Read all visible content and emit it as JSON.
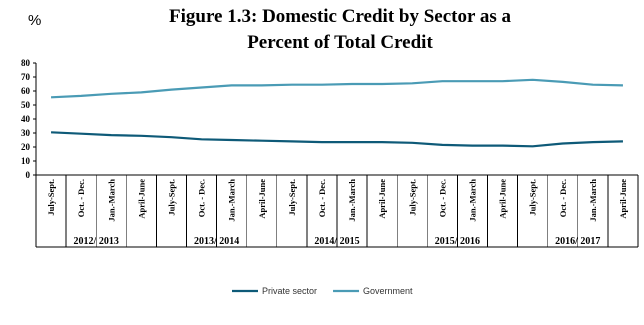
{
  "chart_data": {
    "type": "line",
    "title_lines": [
      "Figure 1.3: Domestic Credit by Sector as a",
      "Percent of Total Credit"
    ],
    "unit_label": "%",
    "ylim": [
      0,
      80
    ],
    "yticks": [
      0,
      10,
      20,
      30,
      40,
      50,
      60,
      70,
      80
    ],
    "categories": [
      "July-Sept.",
      "Oct. - Dec.",
      "Jan.-March",
      "April-June",
      "July-Sept.",
      "Oct. - Dec.",
      "Jan.-March",
      "April-June",
      "July-Sept.",
      "Oct. - Dec.",
      "Jan.-March",
      "April-June",
      "July-Sept.",
      "Oct. - Dec.",
      "Jan.-March",
      "April-June",
      "July-Sept.",
      "Oct. - Dec.",
      "Jan.-March",
      "April-June"
    ],
    "groups": [
      "2012/ 2013",
      "2013/ 2014",
      "2014/ 2015",
      "2015/ 2016",
      "2016/ 2017"
    ],
    "series": [
      {
        "name": "Private sector",
        "color": "#0e5a78",
        "values": [
          30.5,
          29.5,
          28.5,
          28,
          27,
          25.5,
          25,
          24.5,
          24,
          23.5,
          23.5,
          23.5,
          23,
          21.5,
          21,
          21,
          20.5,
          22.5,
          23.5,
          24
        ]
      },
      {
        "name": "Government",
        "color": "#4a9bb5",
        "values": [
          55.5,
          56.5,
          58,
          59,
          61,
          62.5,
          64,
          64,
          64.5,
          64.5,
          65,
          65,
          65.5,
          67,
          67,
          67,
          68,
          66.5,
          64.5,
          64
        ]
      }
    ],
    "grid": false,
    "legend_position": "bottom"
  }
}
